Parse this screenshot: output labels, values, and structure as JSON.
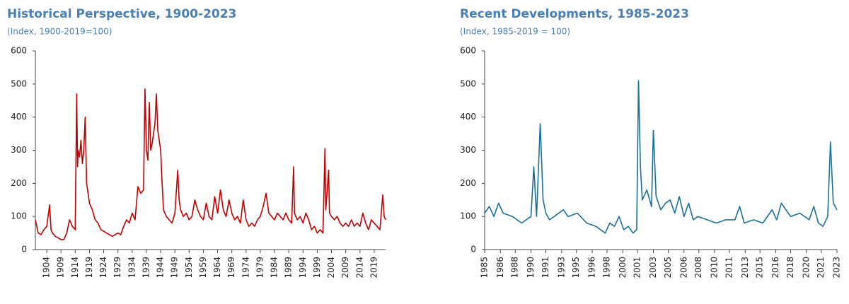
{
  "chart_data": [
    {
      "type": "line",
      "title": "Historical Perspective, 1900-2023",
      "subtitle": "(Index, 1900-2019=100)",
      "color": "#c00000",
      "x": [
        1900,
        1901,
        1902,
        1903,
        1904,
        1905,
        1905.5,
        1906,
        1907,
        1908,
        1909,
        1910,
        1911,
        1912,
        1913,
        1914,
        1914.5,
        1914.8,
        1915,
        1915.5,
        1916,
        1916.5,
        1917,
        1917.5,
        1918,
        1918.5,
        1919,
        1920,
        1921,
        1922,
        1923,
        1924,
        1925,
        1926,
        1927,
        1928,
        1929,
        1930,
        1931,
        1932,
        1933,
        1934,
        1935,
        1936,
        1937,
        1938,
        1938.5,
        1939,
        1939.5,
        1940,
        1940.5,
        1941,
        1942,
        1942.5,
        1943,
        1944,
        1944.5,
        1945,
        1946,
        1947,
        1948,
        1949,
        1950,
        1950.5,
        1951,
        1952,
        1953,
        1954,
        1955,
        1956,
        1957,
        1958,
        1959,
        1960,
        1961,
        1962,
        1963,
        1964,
        1965,
        1966,
        1967,
        1968,
        1969,
        1970,
        1971,
        1972,
        1973,
        1974,
        1975,
        1976,
        1977,
        1978,
        1979,
        1980,
        1981,
        1982,
        1983,
        1984,
        1985,
        1986,
        1987,
        1988,
        1989,
        1990,
        1990.7,
        1991,
        1992,
        1993,
        1994,
        1995,
        1996,
        1997,
        1998,
        1999,
        2000,
        2001,
        2001.7,
        2002,
        2003,
        2003.3,
        2004,
        2005,
        2006,
        2007,
        2008,
        2009,
        2010,
        2011,
        2012,
        2013,
        2014,
        2015,
        2016,
        2017,
        2018,
        2019,
        2020,
        2021,
        2022,
        2022.5,
        2023
      ],
      "values": [
        90,
        50,
        45,
        60,
        70,
        135,
        60,
        50,
        40,
        35,
        30,
        30,
        50,
        90,
        70,
        60,
        470,
        250,
        300,
        280,
        330,
        260,
        300,
        400,
        200,
        170,
        140,
        120,
        90,
        80,
        60,
        55,
        50,
        45,
        40,
        45,
        50,
        45,
        70,
        90,
        80,
        110,
        90,
        190,
        170,
        180,
        485,
        300,
        270,
        445,
        300,
        320,
        380,
        470,
        360,
        300,
        200,
        120,
        100,
        90,
        80,
        110,
        240,
        150,
        120,
        100,
        110,
        90,
        100,
        150,
        120,
        100,
        90,
        140,
        100,
        90,
        160,
        110,
        180,
        120,
        100,
        150,
        110,
        90,
        100,
        80,
        150,
        90,
        70,
        80,
        70,
        90,
        100,
        130,
        170,
        110,
        100,
        90,
        110,
        100,
        90,
        110,
        90,
        80,
        250,
        110,
        90,
        100,
        80,
        110,
        90,
        60,
        70,
        50,
        60,
        50,
        305,
        120,
        240,
        110,
        100,
        90,
        100,
        80,
        70,
        80,
        70,
        90,
        70,
        80,
        70,
        110,
        80,
        60,
        90,
        80,
        70,
        60,
        165,
        100,
        90
      ],
      "xlim": [
        1900,
        2023
      ],
      "ylim": [
        0,
        600
      ],
      "yticks": [
        0,
        100,
        200,
        300,
        400,
        500,
        600
      ],
      "xticks": [
        1904,
        1909,
        1914,
        1919,
        1924,
        1929,
        1934,
        1939,
        1944,
        1949,
        1954,
        1959,
        1964,
        1969,
        1974,
        1979,
        1984,
        1989,
        1994,
        1999,
        2004,
        2009,
        2014,
        2019
      ]
    },
    {
      "type": "line",
      "title": "Recent Developments, 1985-2023",
      "subtitle": "(Index, 1985-2019 = 100)",
      "color": "#1a6e9c",
      "x": [
        1985,
        1985.5,
        1986,
        1986.5,
        1987,
        1988,
        1988.5,
        1989,
        1990,
        1990.3,
        1990.6,
        1991,
        1991.3,
        1991.6,
        1992,
        1993,
        1993.5,
        1994,
        1995,
        1996,
        1997,
        1998,
        1998.5,
        1999,
        1999.5,
        2000,
        2000.5,
        2001,
        2001.4,
        2001.6,
        2001.8,
        2002,
        2002.5,
        2003,
        2003.2,
        2003.5,
        2004,
        2004.5,
        2005,
        2005.5,
        2006,
        2006.5,
        2007,
        2007.5,
        2008,
        2009,
        2010,
        2011,
        2012,
        2012.5,
        2013,
        2014,
        2015,
        2016,
        2016.5,
        2017,
        2018,
        2019,
        2020,
        2020.5,
        2021,
        2021.5,
        2022,
        2022.3,
        2022.6,
        2023
      ],
      "values": [
        110,
        130,
        100,
        140,
        110,
        100,
        90,
        80,
        100,
        250,
        100,
        380,
        150,
        110,
        90,
        110,
        120,
        100,
        110,
        80,
        70,
        50,
        80,
        70,
        100,
        60,
        70,
        50,
        60,
        510,
        250,
        150,
        180,
        130,
        360,
        160,
        120,
        140,
        150,
        110,
        160,
        100,
        140,
        90,
        100,
        90,
        80,
        90,
        90,
        130,
        80,
        90,
        80,
        120,
        90,
        140,
        100,
        110,
        90,
        130,
        80,
        70,
        100,
        325,
        140,
        120
      ],
      "xlim": [
        1985,
        2023
      ],
      "ylim": [
        0,
        600
      ],
      "yticks": [
        0,
        100,
        200,
        300,
        400,
        500,
        600
      ],
      "xticks": [
        1985,
        {
          "value": 1986.7,
          "label": "1986"
        },
        {
          "value": 1988.3,
          "label": "1988"
        },
        {
          "value": 1990.0,
          "label": "1990"
        },
        {
          "value": 1991.6,
          "label": "1991"
        },
        {
          "value": 1993.3,
          "label": "1993"
        },
        {
          "value": 1994.9,
          "label": "1995"
        },
        {
          "value": 1996.6,
          "label": "1996"
        },
        {
          "value": 1998.2,
          "label": "1998"
        },
        {
          "value": 1999.9,
          "label": "2000"
        },
        {
          "value": 2001.5,
          "label": "2001"
        },
        {
          "value": 2003.2,
          "label": "2003"
        },
        {
          "value": 2004.8,
          "label": "2005"
        },
        {
          "value": 2006.5,
          "label": "2006"
        },
        {
          "value": 2008.1,
          "label": "2008"
        },
        {
          "value": 2009.8,
          "label": "2010"
        },
        {
          "value": 2011.4,
          "label": "2011"
        },
        {
          "value": 2013.1,
          "label": "2013"
        },
        {
          "value": 2014.7,
          "label": "2015"
        },
        {
          "value": 2016.4,
          "label": "2016"
        },
        {
          "value": 2018.0,
          "label": "2018"
        },
        {
          "value": 2019.7,
          "label": "2020"
        },
        {
          "value": 2021.3,
          "label": "2021"
        },
        2023
      ]
    }
  ]
}
